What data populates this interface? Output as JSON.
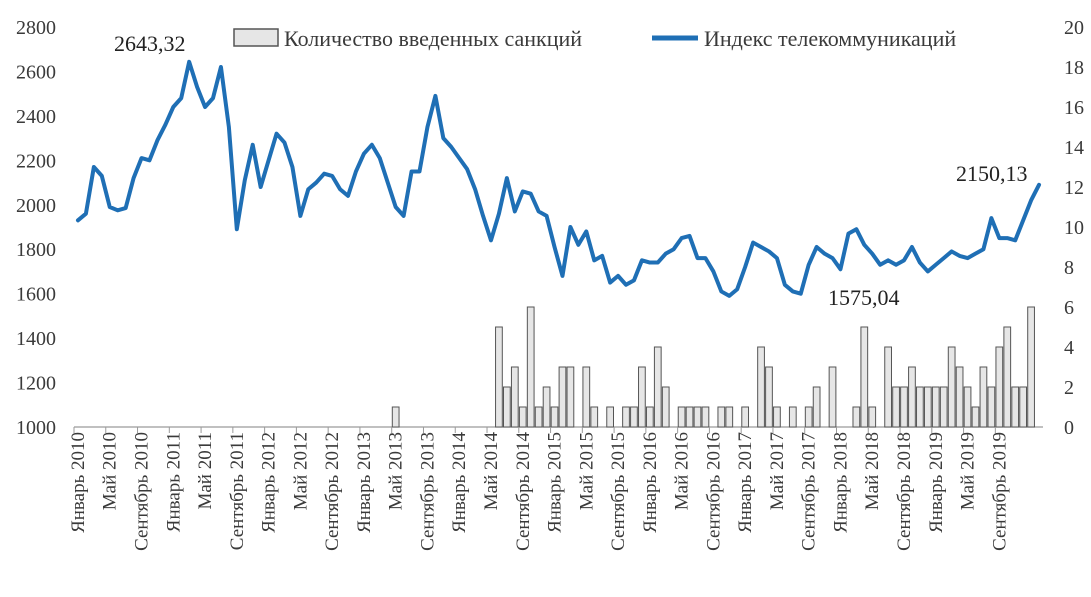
{
  "chart_data": {
    "type": "bar+line",
    "title": "",
    "x_tick_labels": [
      "Январь 2010",
      "Май 2010",
      "Сентябрь 2010",
      "Январь 2011",
      "Май 2011",
      "Сентябрь 2011",
      "Январь 2012",
      "Май 2012",
      "Сентябрь 2012",
      "Январь 2013",
      "Май 2013",
      "Сентябрь 2013",
      "Январь 2014",
      "Май 2014",
      "Сентябрь 2014",
      "Январь 2015",
      "Май 2015",
      "Сентябрь 2015",
      "Январь 2016",
      "Май 2016",
      "Сентябрь 2016",
      "Январь 2017",
      "Май 2017",
      "Сентябрь 2017",
      "Январь 2018",
      "Май 2018",
      "Сентябрь 2018",
      "Январь 2019",
      "Май 2019",
      "Сентябрь 2019"
    ],
    "x_months_start": "2010-01",
    "y_left": {
      "min": 1000,
      "max": 2800,
      "ticks": [
        "1000",
        "1200",
        "1400",
        "1600",
        "1800",
        "2000",
        "2200",
        "2400",
        "2600",
        "2800"
      ]
    },
    "y_right": {
      "min": 0,
      "max": 20,
      "ticks": [
        "0",
        "2",
        "4",
        "6",
        "8",
        "10",
        "12",
        "14",
        "16",
        "18",
        "20"
      ]
    },
    "legend": {
      "position": "top",
      "bar_label": "Количество введенных санкций",
      "line_label": "Индекс телекоммуникаций"
    },
    "series": [
      {
        "name": "Количество введенных санкций",
        "kind": "bar",
        "axis": "right",
        "color": "#e6e6e6",
        "values": [
          0,
          0,
          0,
          0,
          0,
          0,
          0,
          0,
          0,
          0,
          0,
          0,
          0,
          0,
          0,
          0,
          0,
          0,
          0,
          0,
          0,
          0,
          0,
          0,
          0,
          0,
          0,
          0,
          0,
          0,
          0,
          0,
          0,
          0,
          0,
          0,
          0,
          0,
          0,
          0,
          1,
          0,
          0,
          0,
          0,
          0,
          0,
          0,
          0,
          0,
          0,
          0,
          0,
          5,
          2,
          3,
          1,
          6,
          1,
          2,
          1,
          3,
          3,
          0,
          3,
          1,
          0,
          1,
          0,
          1,
          1,
          3,
          1,
          4,
          2,
          0,
          1,
          1,
          1,
          1,
          0,
          1,
          1,
          0,
          1,
          0,
          4,
          3,
          1,
          0,
          1,
          0,
          1,
          2,
          0,
          3,
          0,
          0,
          1,
          5,
          1,
          0,
          4,
          2,
          2,
          3,
          2,
          2,
          2,
          2,
          4,
          3,
          2,
          1,
          3,
          2,
          4,
          5,
          2,
          2,
          6,
          0
        ]
      },
      {
        "name": "Индекс телекоммуникаций",
        "kind": "line",
        "axis": "left",
        "color": "#1f6fb5",
        "values": [
          1930,
          1960,
          2170,
          2130,
          1990,
          1975,
          1985,
          2120,
          2210,
          2200,
          2290,
          2360,
          2440,
          2480,
          2643.32,
          2530,
          2440,
          2480,
          2620,
          2350,
          1890,
          2110,
          2270,
          2080,
          2200,
          2320,
          2280,
          2170,
          1950,
          2070,
          2100,
          2140,
          2130,
          2070,
          2040,
          2150,
          2230,
          2270,
          2210,
          2100,
          1990,
          1950,
          2150,
          2150,
          2350,
          2490,
          2300,
          2260,
          2210,
          2160,
          2070,
          1950,
          1840,
          1960,
          2120,
          1970,
          2060,
          2050,
          1970,
          1950,
          1810,
          1680,
          1900,
          1820,
          1880,
          1750,
          1770,
          1650,
          1680,
          1640,
          1660,
          1750,
          1740,
          1740,
          1780,
          1800,
          1850,
          1860,
          1760,
          1760,
          1700,
          1610,
          1590,
          1620,
          1720,
          1830,
          1810,
          1790,
          1760,
          1640,
          1610,
          1600,
          1730,
          1810,
          1780,
          1760,
          1710,
          1870,
          1890,
          1820,
          1780,
          1730,
          1750,
          1730,
          1750,
          1810,
          1740,
          1700,
          1730,
          1760,
          1790,
          1770,
          1760,
          1780,
          1800,
          1940,
          1850,
          1850,
          1840,
          1930,
          2020,
          2090
        ]
      }
    ],
    "annotations": [
      "2643,32",
      "1575,04",
      "2150,13"
    ]
  }
}
